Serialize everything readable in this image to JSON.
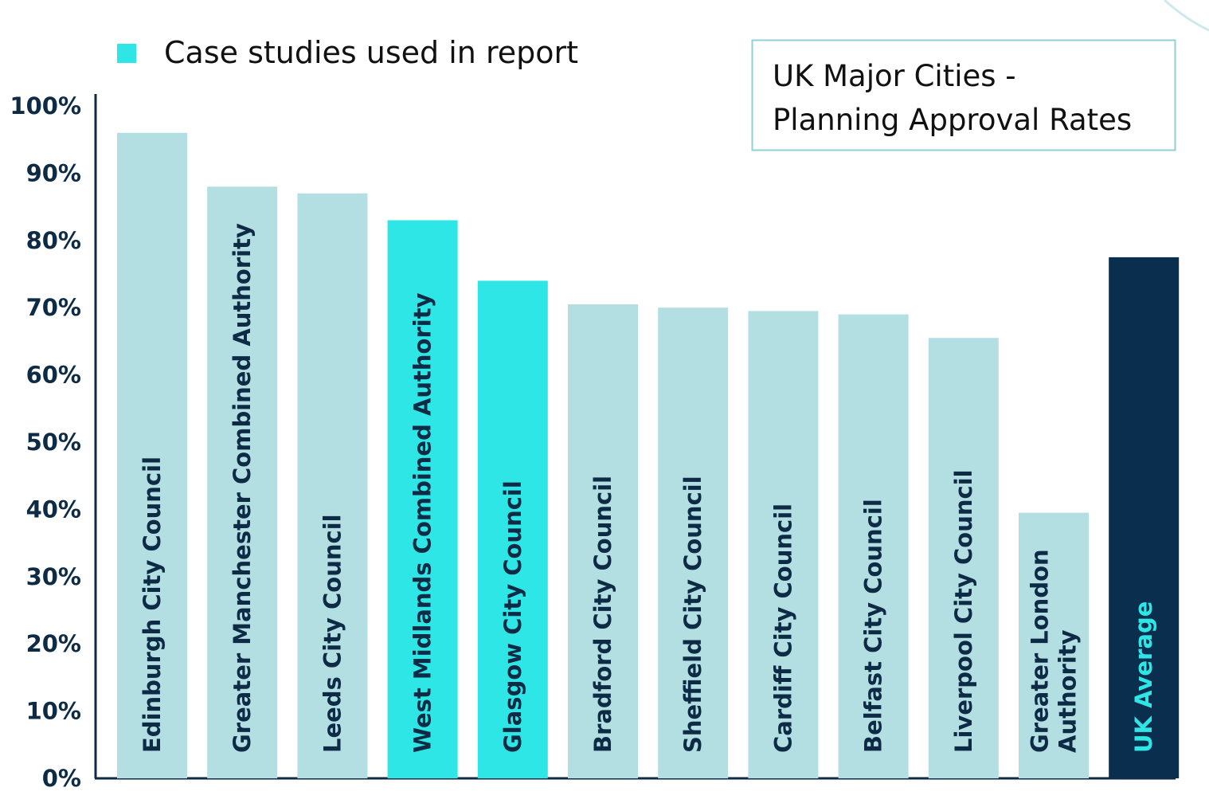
{
  "chart_data": {
    "type": "bar",
    "title_lines": [
      "UK Major Cities -",
      "Planning Approval Rates"
    ],
    "legend": {
      "label": "Case studies used in report",
      "color": "#2ee6e6"
    },
    "y_ticks": [
      "0%",
      "10%",
      "20%",
      "30%",
      "40%",
      "50%",
      "60%",
      "70%",
      "80%",
      "90%",
      "100%"
    ],
    "ylim": [
      0,
      100
    ],
    "grid": false,
    "unit": "%",
    "colors": {
      "default": "#b3dfe3",
      "case_study": "#2ee6e6",
      "average": "#0a2e4d",
      "label_default": "#0d2b45",
      "label_average": "#2ee6e6",
      "axis": "#0d2b45"
    },
    "categories": [
      {
        "name": "Edinburgh City Council",
        "lines": [
          "Edinburgh City Council"
        ],
        "value": 96,
        "kind": "default"
      },
      {
        "name": "Greater Manchester Combined Authority",
        "lines": [
          "Greater Manchester Combined Authority"
        ],
        "value": 88,
        "kind": "default"
      },
      {
        "name": "Leeds City Council",
        "lines": [
          "Leeds City Council"
        ],
        "value": 87,
        "kind": "default"
      },
      {
        "name": "West Midlands Combined Authority",
        "lines": [
          "West Midlands Combined Authority"
        ],
        "value": 83,
        "kind": "case_study"
      },
      {
        "name": "Glasgow City Council",
        "lines": [
          "Glasgow City Council"
        ],
        "value": 74,
        "kind": "case_study"
      },
      {
        "name": "Bradford City Council",
        "lines": [
          "Bradford City Council"
        ],
        "value": 70.5,
        "kind": "default"
      },
      {
        "name": "Sheffield City Council",
        "lines": [
          "Sheffield City Council"
        ],
        "value": 70,
        "kind": "default"
      },
      {
        "name": "Cardiff City Council",
        "lines": [
          "Cardiff City Council"
        ],
        "value": 69.5,
        "kind": "default"
      },
      {
        "name": "Belfast City Council",
        "lines": [
          "Belfast City Council"
        ],
        "value": 69,
        "kind": "default"
      },
      {
        "name": "Liverpool City Council",
        "lines": [
          "Liverpool City Council"
        ],
        "value": 65.5,
        "kind": "default"
      },
      {
        "name": "Greater London Authority",
        "lines": [
          "Greater London",
          "Authority"
        ],
        "value": 39.5,
        "kind": "default"
      },
      {
        "name": "UK Average",
        "lines": [
          "UK Average"
        ],
        "value": 77.5,
        "kind": "average"
      }
    ]
  }
}
